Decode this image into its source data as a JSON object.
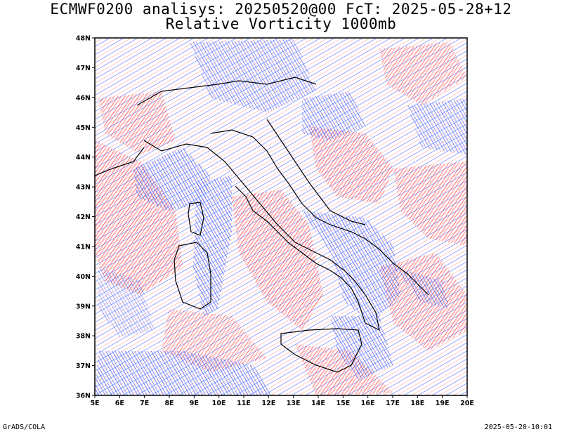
{
  "title_line1": "ECMWF0200 analisys: 20250520@00 FcT: 2025-05-28+12",
  "title_line2": "Relative Vorticity 1000mb",
  "footer_left": "GrADS/COLA",
  "footer_right": "2025-05-20-10:01",
  "axes": {
    "lon_labels": [
      "5E",
      "6E",
      "7E",
      "8E",
      "9E",
      "10E",
      "11E",
      "12E",
      "13E",
      "14E",
      "15E",
      "16E",
      "17E",
      "18E",
      "19E",
      "20E"
    ],
    "lat_labels": [
      "48N",
      "47N",
      "46N",
      "45N",
      "44N",
      "43N",
      "42N",
      "41N",
      "40N",
      "39N",
      "38N",
      "37N",
      "36N"
    ],
    "lon_range": [
      5,
      20
    ],
    "lat_range": [
      36,
      48
    ]
  },
  "colors": {
    "positive_vorticity": "#ff3b3b",
    "negative_vorticity": "#3b55ff",
    "coastline": "#000000"
  }
}
